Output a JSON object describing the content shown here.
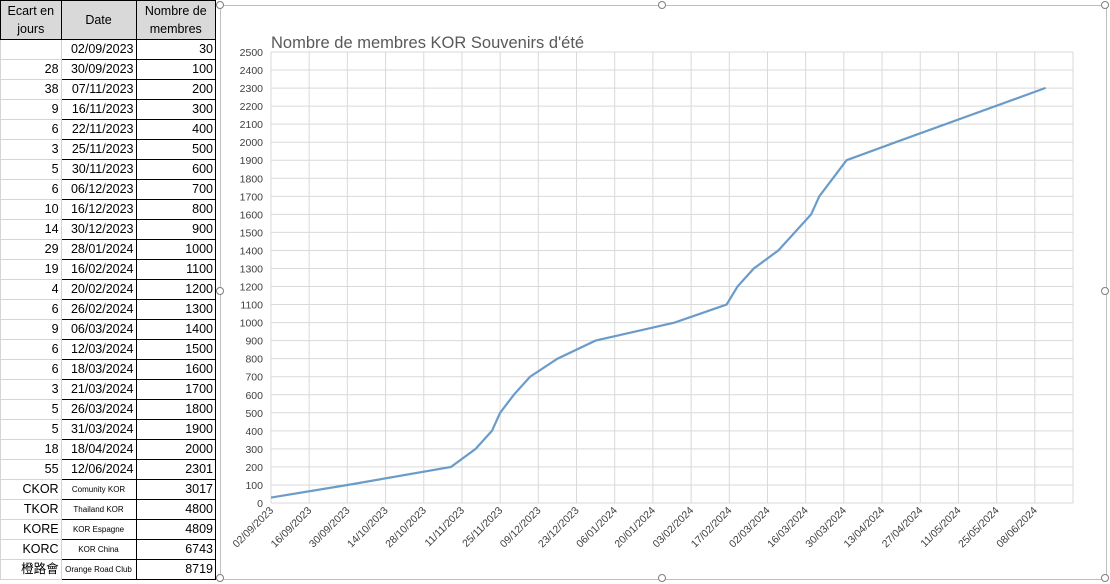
{
  "table": {
    "headers": [
      "Ecart en jours",
      "Date",
      "Nombre de membres"
    ],
    "rows": [
      {
        "ecart": "",
        "date": "02/09/2023",
        "membres": "30"
      },
      {
        "ecart": "28",
        "date": "30/09/2023",
        "membres": "100"
      },
      {
        "ecart": "38",
        "date": "07/11/2023",
        "membres": "200"
      },
      {
        "ecart": "9",
        "date": "16/11/2023",
        "membres": "300"
      },
      {
        "ecart": "6",
        "date": "22/11/2023",
        "membres": "400"
      },
      {
        "ecart": "3",
        "date": "25/11/2023",
        "membres": "500"
      },
      {
        "ecart": "5",
        "date": "30/11/2023",
        "membres": "600"
      },
      {
        "ecart": "6",
        "date": "06/12/2023",
        "membres": "700"
      },
      {
        "ecart": "10",
        "date": "16/12/2023",
        "membres": "800"
      },
      {
        "ecart": "14",
        "date": "30/12/2023",
        "membres": "900"
      },
      {
        "ecart": "29",
        "date": "28/01/2024",
        "membres": "1000"
      },
      {
        "ecart": "19",
        "date": "16/02/2024",
        "membres": "1100"
      },
      {
        "ecart": "4",
        "date": "20/02/2024",
        "membres": "1200"
      },
      {
        "ecart": "6",
        "date": "26/02/2024",
        "membres": "1300"
      },
      {
        "ecart": "9",
        "date": "06/03/2024",
        "membres": "1400"
      },
      {
        "ecart": "6",
        "date": "12/03/2024",
        "membres": "1500"
      },
      {
        "ecart": "6",
        "date": "18/03/2024",
        "membres": "1600"
      },
      {
        "ecart": "3",
        "date": "21/03/2024",
        "membres": "1700"
      },
      {
        "ecart": "5",
        "date": "26/03/2024",
        "membres": "1800"
      },
      {
        "ecart": "5",
        "date": "31/03/2024",
        "membres": "1900"
      },
      {
        "ecart": "18",
        "date": "18/04/2024",
        "membres": "2000"
      },
      {
        "ecart": "55",
        "date": "12/06/2024",
        "membres": "2301"
      }
    ],
    "groups": [
      {
        "code": "CKOR",
        "name": "Comunity KOR",
        "value": "3017"
      },
      {
        "code": "TKOR",
        "name": "Thailand KOR",
        "value": "4800"
      },
      {
        "code": "KORE",
        "name": "KOR Espagne",
        "value": "4809"
      },
      {
        "code": "KORC",
        "name": "KOR China",
        "value": "6743"
      },
      {
        "code": "橙路會",
        "name": "Orange Road Club",
        "value": "8719"
      }
    ]
  },
  "chart_data": {
    "type": "line",
    "title": "Nombre de membres KOR Souvenirs d'été",
    "xlabel": "",
    "ylabel": "",
    "ylim": [
      0,
      2500
    ],
    "ytick_step": 100,
    "x_tick_labels": [
      "02/09/2023",
      "16/09/2023",
      "30/09/2023",
      "14/10/2023",
      "28/10/2023",
      "11/11/2023",
      "25/11/2023",
      "09/12/2023",
      "23/12/2023",
      "06/01/2024",
      "20/01/2024",
      "03/02/2024",
      "17/02/2024",
      "02/03/2024",
      "16/03/2024",
      "30/03/2024",
      "13/04/2024",
      "27/04/2024",
      "11/05/2024",
      "25/05/2024",
      "08/06/2024"
    ],
    "x": [
      "02/09/2023",
      "30/09/2023",
      "07/11/2023",
      "16/11/2023",
      "22/11/2023",
      "25/11/2023",
      "30/11/2023",
      "06/12/2023",
      "16/12/2023",
      "30/12/2023",
      "28/01/2024",
      "16/02/2024",
      "20/02/2024",
      "26/02/2024",
      "06/03/2024",
      "12/03/2024",
      "18/03/2024",
      "21/03/2024",
      "26/03/2024",
      "31/03/2024",
      "18/04/2024",
      "12/06/2024"
    ],
    "series": [
      {
        "values": [
          30,
          100,
          200,
          300,
          400,
          500,
          600,
          700,
          800,
          900,
          1000,
          1100,
          1200,
          1300,
          1400,
          1500,
          1600,
          1700,
          1800,
          1900,
          2000,
          2301
        ]
      }
    ],
    "grid": true,
    "line_color": "#6b9cc9",
    "grid_color": "#d9d9d9"
  }
}
